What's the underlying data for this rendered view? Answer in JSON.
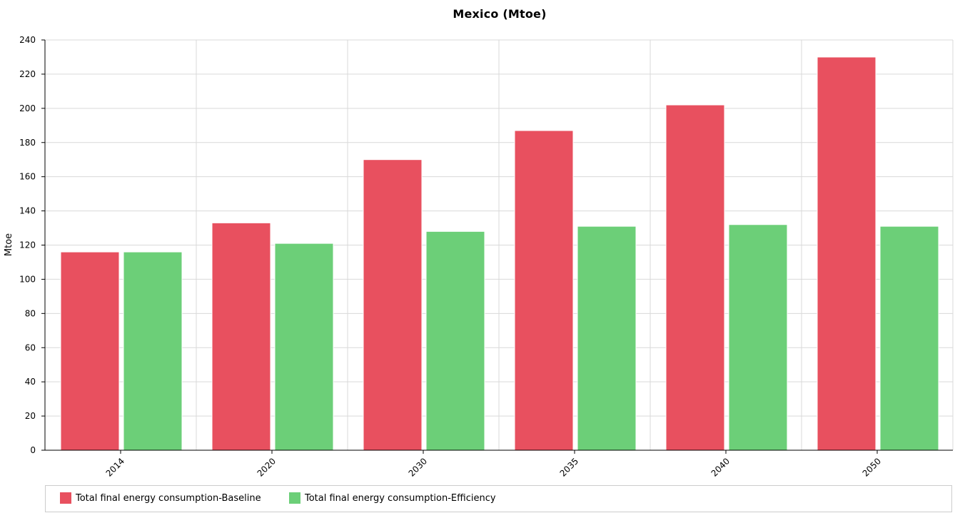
{
  "chart_data": {
    "type": "bar",
    "title": "Mexico (Mtoe)",
    "xlabel": "",
    "ylabel": "Mtoe",
    "categories": [
      "2014",
      "2020",
      "2030",
      "2035",
      "2040",
      "2050"
    ],
    "series": [
      {
        "name": "Total final energy consumption-Baseline",
        "color": "#e8505f",
        "values": [
          116,
          133,
          170,
          187,
          202,
          230
        ]
      },
      {
        "name": "Total final energy consumption-Efficiency",
        "color": "#6ccf78",
        "values": [
          116,
          121,
          128,
          131,
          132,
          131
        ]
      }
    ],
    "ylim": [
      0,
      240
    ],
    "yticks": [
      0,
      20,
      40,
      60,
      80,
      100,
      120,
      140,
      160,
      180,
      200,
      220,
      240
    ],
    "grid": true,
    "legend_position": "bottom"
  }
}
